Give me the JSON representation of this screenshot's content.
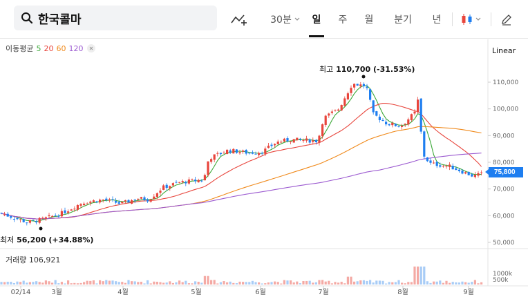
{
  "toolbar": {
    "search_value": "한국콜마",
    "search_icon": "search-icon",
    "indicator_icon": "trend-add-icon",
    "interval_label": "30분",
    "tabs": [
      {
        "label": "일",
        "active": true
      },
      {
        "label": "주",
        "active": false
      },
      {
        "label": "월",
        "active": false
      },
      {
        "label": "분기",
        "active": false
      },
      {
        "label": "년",
        "active": false
      }
    ],
    "chart_style_icon": "candlestick-icon",
    "draw_icon": "pencil-icon"
  },
  "legend": {
    "title": "이동평균",
    "ma": [
      {
        "label": "5",
        "color": "#3aa836"
      },
      {
        "label": "20",
        "color": "#e8453c"
      },
      {
        "label": "60",
        "color": "#f08a1c"
      },
      {
        "label": "120",
        "color": "#9b59d0"
      }
    ],
    "close_icon": "close-icon",
    "volume_label": "거래량 106,921"
  },
  "axis": {
    "scale_type": "Linear",
    "y_ticks": [
      "110,000",
      "100,000",
      "90,000",
      "80,000",
      "70,000",
      "60,000",
      "50,000"
    ],
    "vol_ticks": [
      "1000k",
      "500k"
    ],
    "x_ticks": [
      "02/14",
      "3월",
      "4월",
      "5월",
      "6월",
      "7월",
      "8월",
      "9월"
    ]
  },
  "annotations": {
    "high_label": "최고",
    "high_value": "110,700 (-31.53%)",
    "low_label": "최저",
    "low_value": "56,200 (+34.88%)"
  },
  "current_price": "75,800",
  "colors": {
    "up": "#e8453c",
    "down": "#1e7ef0",
    "accent": "#1e7ef0"
  }
}
